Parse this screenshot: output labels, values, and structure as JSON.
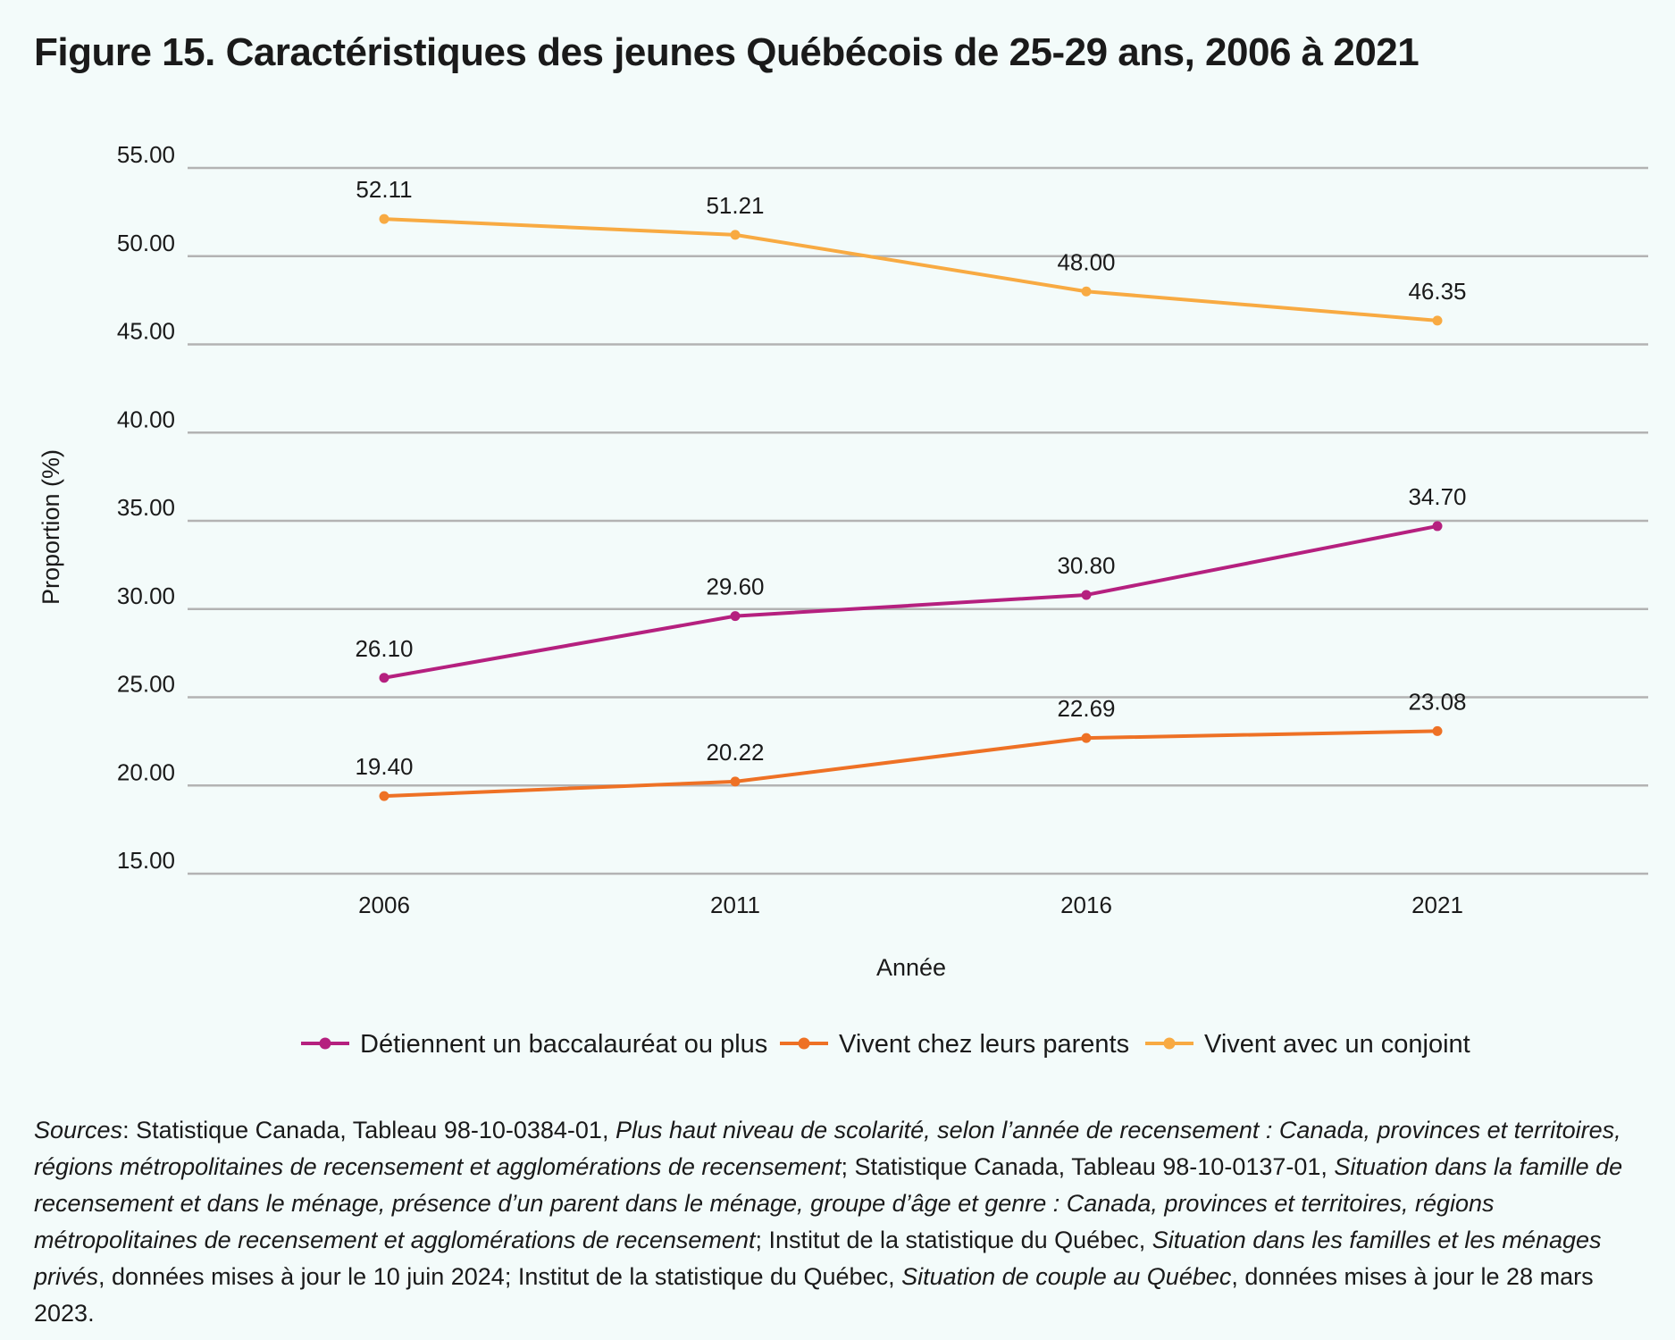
{
  "title": "Figure 15. Caractéristiques des jeunes Québécois de 25-29 ans, 2006 à 2021",
  "chart_data": {
    "type": "line",
    "categories": [
      "2006",
      "2011",
      "2016",
      "2021"
    ],
    "series": [
      {
        "name": "Détiennent un baccalauréat ou plus",
        "color": "#b5207f",
        "values": [
          26.1,
          29.6,
          30.8,
          34.7
        ],
        "labels": [
          "26.10",
          "29.60",
          "30.80",
          "34.70"
        ]
      },
      {
        "name": "Vivent chez leurs parents",
        "color": "#ee7125",
        "values": [
          19.4,
          20.22,
          22.69,
          23.08
        ],
        "labels": [
          "19.40",
          "20.22",
          "22.69",
          "23.08"
        ]
      },
      {
        "name": "Vivent avec un conjoint",
        "color": "#f8aa42",
        "values": [
          52.11,
          51.21,
          48.0,
          46.35
        ],
        "labels": [
          "52.11",
          "51.21",
          "48.00",
          "46.35"
        ]
      }
    ],
    "yticks": [
      "15.00",
      "20.00",
      "25.00",
      "30.00",
      "35.00",
      "40.00",
      "45.00",
      "50.00",
      "55.00"
    ],
    "ylim": [
      15,
      55
    ],
    "xlabel": "Année",
    "ylabel": "Proportion (%)",
    "grid": true,
    "legend": "bottom"
  },
  "sources": [
    {
      "t": "Sources",
      "i": true
    },
    {
      "t": ": Statistique Canada, Tableau 98-10-0384-01, ",
      "i": false
    },
    {
      "t": "Plus haut niveau de scolarité, selon l’année de recensement : Canada, provinces et territoires, régions métropolitaines de recensement et agglomérations de recensement",
      "i": true
    },
    {
      "t": "; Statistique Canada, Tableau 98-10-0137-01, ",
      "i": false
    },
    {
      "t": "Situation dans la famille de recensement et dans le ménage, présence d’un parent dans le ménage, groupe d’âge et genre : Canada, provinces et territoires, régions métropolitaines de recensement et agglomérations de recensement",
      "i": true
    },
    {
      "t": "; Institut de la statistique du Québec, ",
      "i": false
    },
    {
      "t": "Situation dans les familles et les ménages privés",
      "i": true
    },
    {
      "t": ", données mises à jour le 10 juin 2024; Institut de la statistique du Québec, ",
      "i": false
    },
    {
      "t": "Situation de couple au Québec",
      "i": true
    },
    {
      "t": ", données mises à jour le 28 mars 2023.",
      "i": false
    }
  ]
}
